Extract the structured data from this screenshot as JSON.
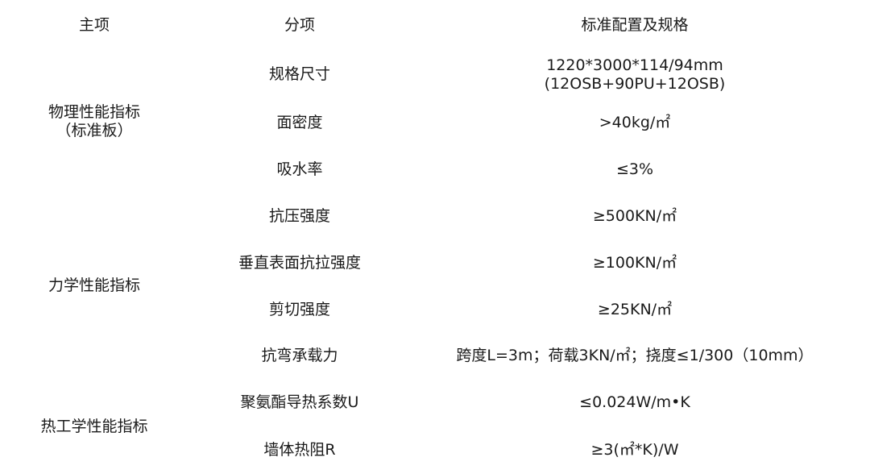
{
  "header": {
    "main": "主项",
    "sub": "分项",
    "spec": "标准配置及规格"
  },
  "groups": [
    {
      "label": "物理性能指标\n（标准板）",
      "rows": [
        {
          "sub": "规格尺寸",
          "spec": "1220*3000*114/94mm\n(12OSB+90PU+12OSB)"
        },
        {
          "sub": "面密度",
          "spec": ">40kg/㎡"
        },
        {
          "sub": "吸水率",
          "spec": "≤3%"
        }
      ]
    },
    {
      "label": "力学性能指标",
      "rows": [
        {
          "sub": "抗压强度",
          "spec": "≥500KN/㎡"
        },
        {
          "sub": "垂直表面抗拉强度",
          "spec": "≥100KN/㎡"
        },
        {
          "sub": "剪切强度",
          "spec": "≥25KN/㎡"
        },
        {
          "sub": "抗弯承载力",
          "spec": "跨度L=3m；荷载3KN/㎡；挠度≤1/300（10mm）"
        }
      ]
    },
    {
      "label": "热工学性能指标",
      "rows": [
        {
          "sub": "聚氨酯导热系数U",
          "spec": "≤0.024W/m•K"
        },
        {
          "sub": "墙体热阻R",
          "spec": "≥3(㎡*K)/W"
        }
      ]
    }
  ]
}
